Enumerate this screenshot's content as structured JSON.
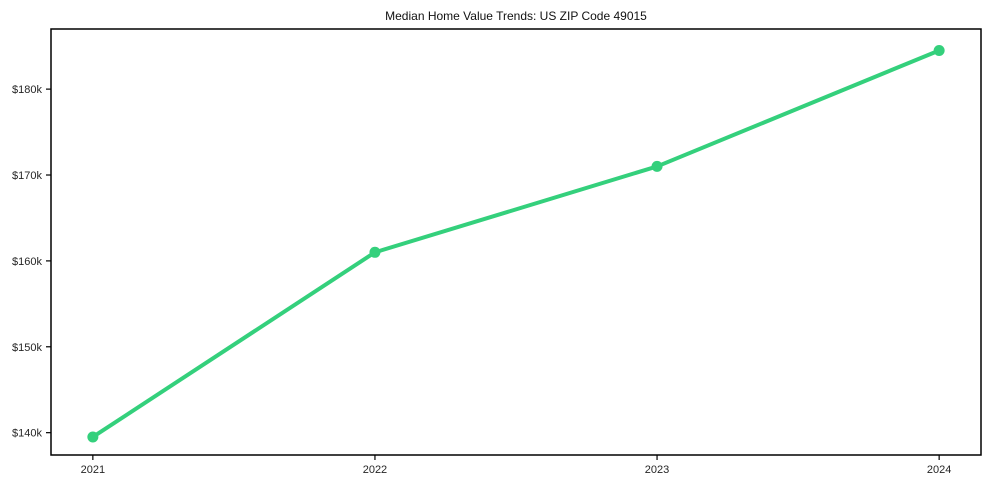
{
  "chart_data": {
    "type": "line",
    "title": "Median Home Value Trends: US ZIP Code 49015",
    "categories": [
      "2021",
      "2022",
      "2023",
      "2024"
    ],
    "series": [
      {
        "name": "Median Home Value",
        "values": [
          139500,
          161000,
          171000,
          184500
        ]
      }
    ],
    "xlabel": "",
    "ylabel": "",
    "y_ticks": [
      140000,
      150000,
      160000,
      170000,
      180000
    ],
    "y_tick_labels": [
      "$140k",
      "$150k",
      "$160k",
      "$170k",
      "$180k"
    ],
    "ylim": [
      137400,
      187000
    ],
    "grid": false,
    "legend_position": "none",
    "marker": "filled-circle",
    "colors": {
      "line": "#34d07c",
      "marker": "#34d07c",
      "text": "#262626",
      "title": "#111111",
      "spine": "#000000",
      "background": "#ffffff"
    }
  }
}
